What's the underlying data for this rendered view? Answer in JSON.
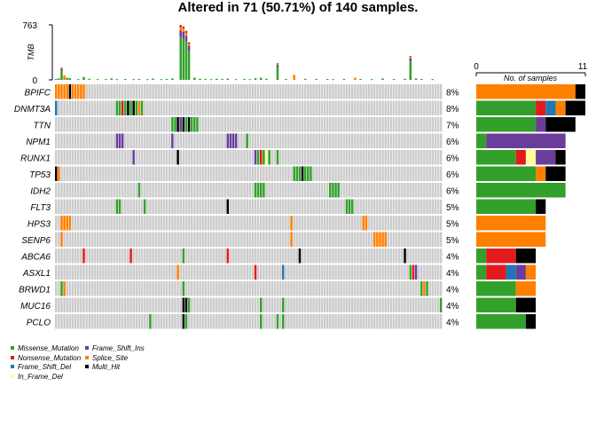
{
  "chart_data": {
    "type": "oncoplot",
    "title": "Altered in 71 (50.71%) of 140 samples.",
    "tmb_axis": {
      "label": "TMB",
      "max_label": "763",
      "min_label": "0",
      "max": 763
    },
    "count_axis": {
      "label": "No. of samples",
      "min_label": "0",
      "max_label": "11",
      "max": 11
    },
    "n_samples": 140,
    "colors": {
      "Missense_Mutation": "#33a02c",
      "Nonsense_Mutation": "#e31a1c",
      "Frame_Shift_Del": "#1f78b4",
      "In_Frame_Del": "#ffff99",
      "Frame_Shift_Ins": "#6a3d9a",
      "Splice_Site": "#ff7f00",
      "Multi_Hit": "#000000",
      "none": "#cccccc"
    },
    "legend": [
      {
        "label": "Missense_Mutation",
        "color": "#33a02c"
      },
      {
        "label": "Nonsense_Mutation",
        "color": "#e31a1c"
      },
      {
        "label": "Frame_Shift_Del",
        "color": "#1f78b4"
      },
      {
        "label": "In_Frame_Del",
        "color": "#ffff99"
      },
      {
        "label": "Frame_Shift_Ins",
        "color": "#6a3d9a"
      },
      {
        "label": "Splice_Site",
        "color": "#ff7f00"
      },
      {
        "label": "Multi_Hit",
        "color": "#000000"
      }
    ],
    "genes": [
      {
        "name": "BPIFC",
        "pct": "8%",
        "counts": {
          "Splice_Site": 10,
          "Multi_Hit": 1
        },
        "cells": [
          [
            0,
            "Splice_Site"
          ],
          [
            1,
            "Splice_Site"
          ],
          [
            2,
            "Splice_Site"
          ],
          [
            3,
            "Splice_Site"
          ],
          [
            4,
            "Splice_Site"
          ],
          [
            5,
            "Multi_Hit"
          ],
          [
            6,
            "Splice_Site"
          ],
          [
            7,
            "Splice_Site"
          ],
          [
            8,
            "Splice_Site"
          ],
          [
            9,
            "Splice_Site"
          ],
          [
            10,
            "Splice_Site"
          ]
        ]
      },
      {
        "name": "DNMT3A",
        "pct": "8%",
        "counts": {
          "Missense_Mutation": 6,
          "Nonsense_Mutation": 1,
          "Frame_Shift_Del": 1,
          "Splice_Site": 1,
          "Multi_Hit": 2
        },
        "cells": [
          [
            0,
            "Frame_Shift_Del"
          ],
          [
            22,
            "Missense_Mutation"
          ],
          [
            23,
            "Missense_Mutation"
          ],
          [
            24,
            "Nonsense_Mutation"
          ],
          [
            25,
            "Missense_Mutation"
          ],
          [
            26,
            "Multi_Hit"
          ],
          [
            27,
            "Missense_Mutation"
          ],
          [
            28,
            "Multi_Hit"
          ],
          [
            29,
            "Missense_Mutation"
          ],
          [
            30,
            "Splice_Site"
          ],
          [
            31,
            "Missense_Mutation"
          ]
        ]
      },
      {
        "name": "TTN",
        "pct": "7%",
        "counts": {
          "Missense_Mutation": 6,
          "Frame_Shift_Ins": 1,
          "Multi_Hit": 3
        },
        "cells": [
          [
            42,
            "Missense_Mutation"
          ],
          [
            43,
            "Missense_Mutation"
          ],
          [
            44,
            "Multi_Hit"
          ],
          [
            45,
            "Frame_Shift_Ins"
          ],
          [
            46,
            "Multi_Hit"
          ],
          [
            47,
            "Missense_Mutation"
          ],
          [
            48,
            "Multi_Hit"
          ],
          [
            49,
            "Missense_Mutation"
          ],
          [
            50,
            "Missense_Mutation"
          ],
          [
            51,
            "Missense_Mutation"
          ]
        ]
      },
      {
        "name": "NPM1",
        "pct": "6%",
        "counts": {
          "Missense_Mutation": 1,
          "Frame_Shift_Ins": 8
        },
        "cells": [
          [
            22,
            "Frame_Shift_Ins"
          ],
          [
            23,
            "Frame_Shift_Ins"
          ],
          [
            24,
            "Frame_Shift_Ins"
          ],
          [
            42,
            "Frame_Shift_Ins"
          ],
          [
            62,
            "Frame_Shift_Ins"
          ],
          [
            63,
            "Frame_Shift_Ins"
          ],
          [
            64,
            "Frame_Shift_Ins"
          ],
          [
            65,
            "Frame_Shift_Ins"
          ],
          [
            69,
            "Missense_Mutation"
          ]
        ]
      },
      {
        "name": "RUNX1",
        "pct": "6%",
        "counts": {
          "Missense_Mutation": 4,
          "Nonsense_Mutation": 1,
          "In_Frame_Del": 1,
          "Frame_Shift_Ins": 2,
          "Multi_Hit": 1
        },
        "cells": [
          [
            28,
            "Frame_Shift_Ins"
          ],
          [
            44,
            "Multi_Hit"
          ],
          [
            72,
            "Frame_Shift_Ins"
          ],
          [
            73,
            "Missense_Mutation"
          ],
          [
            74,
            "Nonsense_Mutation"
          ],
          [
            75,
            "Missense_Mutation"
          ],
          [
            76,
            "In_Frame_Del"
          ],
          [
            77,
            "Missense_Mutation"
          ],
          [
            80,
            "Missense_Mutation"
          ]
        ]
      },
      {
        "name": "TP53",
        "pct": "6%",
        "counts": {
          "Missense_Mutation": 6,
          "Splice_Site": 1,
          "Multi_Hit": 2
        },
        "cells": [
          [
            0,
            "Multi_Hit"
          ],
          [
            1,
            "Splice_Site"
          ],
          [
            86,
            "Missense_Mutation"
          ],
          [
            87,
            "Missense_Mutation"
          ],
          [
            88,
            "Missense_Mutation"
          ],
          [
            89,
            "Multi_Hit"
          ],
          [
            90,
            "Missense_Mutation"
          ],
          [
            91,
            "Missense_Mutation"
          ],
          [
            92,
            "Missense_Mutation"
          ]
        ]
      },
      {
        "name": "IDH2",
        "pct": "6%",
        "counts": {
          "Missense_Mutation": 9
        },
        "cells": [
          [
            30,
            "Missense_Mutation"
          ],
          [
            72,
            "Missense_Mutation"
          ],
          [
            73,
            "Missense_Mutation"
          ],
          [
            74,
            "Missense_Mutation"
          ],
          [
            75,
            "Missense_Mutation"
          ],
          [
            99,
            "Missense_Mutation"
          ],
          [
            100,
            "Missense_Mutation"
          ],
          [
            101,
            "Missense_Mutation"
          ],
          [
            102,
            "Missense_Mutation"
          ]
        ]
      },
      {
        "name": "FLT3",
        "pct": "5%",
        "counts": {
          "Missense_Mutation": 6,
          "Multi_Hit": 1
        },
        "cells": [
          [
            22,
            "Missense_Mutation"
          ],
          [
            23,
            "Missense_Mutation"
          ],
          [
            32,
            "Missense_Mutation"
          ],
          [
            62,
            "Multi_Hit"
          ],
          [
            105,
            "Missense_Mutation"
          ],
          [
            106,
            "Missense_Mutation"
          ],
          [
            107,
            "Missense_Mutation"
          ]
        ]
      },
      {
        "name": "HPS3",
        "pct": "5%",
        "counts": {
          "Splice_Site": 7
        },
        "cells": [
          [
            2,
            "Splice_Site"
          ],
          [
            3,
            "Splice_Site"
          ],
          [
            4,
            "Splice_Site"
          ],
          [
            5,
            "Splice_Site"
          ],
          [
            85,
            "Splice_Site"
          ],
          [
            111,
            "Splice_Site"
          ],
          [
            112,
            "Splice_Site"
          ]
        ]
      },
      {
        "name": "SENP6",
        "pct": "5%",
        "counts": {
          "Splice_Site": 7
        },
        "cells": [
          [
            2,
            "Splice_Site"
          ],
          [
            85,
            "Splice_Site"
          ],
          [
            115,
            "Splice_Site"
          ],
          [
            116,
            "Splice_Site"
          ],
          [
            117,
            "Splice_Site"
          ],
          [
            118,
            "Splice_Site"
          ],
          [
            119,
            "Splice_Site"
          ]
        ]
      },
      {
        "name": "ABCA6",
        "pct": "4%",
        "counts": {
          "Missense_Mutation": 1,
          "Nonsense_Mutation": 3,
          "Multi_Hit": 2
        },
        "cells": [
          [
            10,
            "Nonsense_Mutation"
          ],
          [
            27,
            "Nonsense_Mutation"
          ],
          [
            46,
            "Missense_Mutation"
          ],
          [
            62,
            "Nonsense_Mutation"
          ],
          [
            88,
            "Multi_Hit"
          ],
          [
            126,
            "Multi_Hit"
          ]
        ]
      },
      {
        "name": "ASXL1",
        "pct": "4%",
        "counts": {
          "Missense_Mutation": 1,
          "Nonsense_Mutation": 2,
          "Frame_Shift_Del": 1,
          "Frame_Shift_Ins": 1,
          "Splice_Site": 1
        },
        "cells": [
          [
            44,
            "Splice_Site"
          ],
          [
            72,
            "Nonsense_Mutation"
          ],
          [
            82,
            "Frame_Shift_Del"
          ],
          [
            128,
            "Missense_Mutation"
          ],
          [
            129,
            "Nonsense_Mutation"
          ],
          [
            130,
            "Frame_Shift_Ins"
          ]
        ]
      },
      {
        "name": "BRWD1",
        "pct": "4%",
        "counts": {
          "Missense_Mutation": 4,
          "Splice_Site": 2
        },
        "cells": [
          [
            2,
            "Missense_Mutation"
          ],
          [
            3,
            "Splice_Site"
          ],
          [
            46,
            "Missense_Mutation"
          ],
          [
            132,
            "Missense_Mutation"
          ],
          [
            133,
            "Splice_Site"
          ],
          [
            134,
            "Missense_Mutation"
          ]
        ]
      },
      {
        "name": "MUC16",
        "pct": "4%",
        "counts": {
          "Missense_Mutation": 4,
          "Multi_Hit": 2
        },
        "cells": [
          [
            46,
            "Multi_Hit"
          ],
          [
            47,
            "Multi_Hit"
          ],
          [
            48,
            "Missense_Mutation"
          ],
          [
            74,
            "Missense_Mutation"
          ],
          [
            82,
            "Missense_Mutation"
          ],
          [
            139,
            "Missense_Mutation"
          ]
        ]
      },
      {
        "name": "PCLO",
        "pct": "4%",
        "counts": {
          "Missense_Mutation": 5,
          "Multi_Hit": 1
        },
        "cells": [
          [
            34,
            "Missense_Mutation"
          ],
          [
            46,
            "Multi_Hit"
          ],
          [
            47,
            "Missense_Mutation"
          ],
          [
            74,
            "Missense_Mutation"
          ],
          [
            80,
            "Missense_Mutation"
          ],
          [
            82,
            "Missense_Mutation"
          ]
        ]
      }
    ],
    "tmb_bars": [
      {
        "sample": 0,
        "value": 12
      },
      {
        "sample": 1,
        "value": 20
      },
      {
        "sample": 2,
        "value": 170
      },
      {
        "sample": 3,
        "value": 60
      },
      {
        "sample": 4,
        "value": 30
      },
      {
        "sample": 5,
        "value": 25
      },
      {
        "sample": 8,
        "value": 10
      },
      {
        "sample": 10,
        "value": 40
      },
      {
        "sample": 12,
        "value": 15
      },
      {
        "sample": 15,
        "value": 10
      },
      {
        "sample": 18,
        "value": 12
      },
      {
        "sample": 20,
        "value": 20
      },
      {
        "sample": 22,
        "value": 10
      },
      {
        "sample": 25,
        "value": 12
      },
      {
        "sample": 28,
        "value": 10
      },
      {
        "sample": 30,
        "value": 12
      },
      {
        "sample": 33,
        "value": 10
      },
      {
        "sample": 35,
        "value": 18
      },
      {
        "sample": 38,
        "value": 10
      },
      {
        "sample": 40,
        "value": 12
      },
      {
        "sample": 42,
        "value": 20
      },
      {
        "sample": 45,
        "value": 760
      },
      {
        "sample": 46,
        "value": 740
      },
      {
        "sample": 47,
        "value": 680
      },
      {
        "sample": 48,
        "value": 520
      },
      {
        "sample": 50,
        "value": 30
      },
      {
        "sample": 52,
        "value": 15
      },
      {
        "sample": 54,
        "value": 12
      },
      {
        "sample": 56,
        "value": 10
      },
      {
        "sample": 58,
        "value": 15
      },
      {
        "sample": 60,
        "value": 12
      },
      {
        "sample": 62,
        "value": 18
      },
      {
        "sample": 65,
        "value": 10
      },
      {
        "sample": 68,
        "value": 12
      },
      {
        "sample": 70,
        "value": 10
      },
      {
        "sample": 72,
        "value": 22
      },
      {
        "sample": 74,
        "value": 30
      },
      {
        "sample": 76,
        "value": 15
      },
      {
        "sample": 80,
        "value": 230
      },
      {
        "sample": 83,
        "value": 12
      },
      {
        "sample": 86,
        "value": 70
      },
      {
        "sample": 90,
        "value": 15
      },
      {
        "sample": 94,
        "value": 12
      },
      {
        "sample": 98,
        "value": 12
      },
      {
        "sample": 100,
        "value": 10
      },
      {
        "sample": 104,
        "value": 12
      },
      {
        "sample": 108,
        "value": 30
      },
      {
        "sample": 110,
        "value": 12
      },
      {
        "sample": 114,
        "value": 10
      },
      {
        "sample": 118,
        "value": 20
      },
      {
        "sample": 122,
        "value": 12
      },
      {
        "sample": 126,
        "value": 15
      },
      {
        "sample": 128,
        "value": 330
      },
      {
        "sample": 130,
        "value": 20
      },
      {
        "sample": 132,
        "value": 12
      },
      {
        "sample": 136,
        "value": 10
      }
    ]
  }
}
